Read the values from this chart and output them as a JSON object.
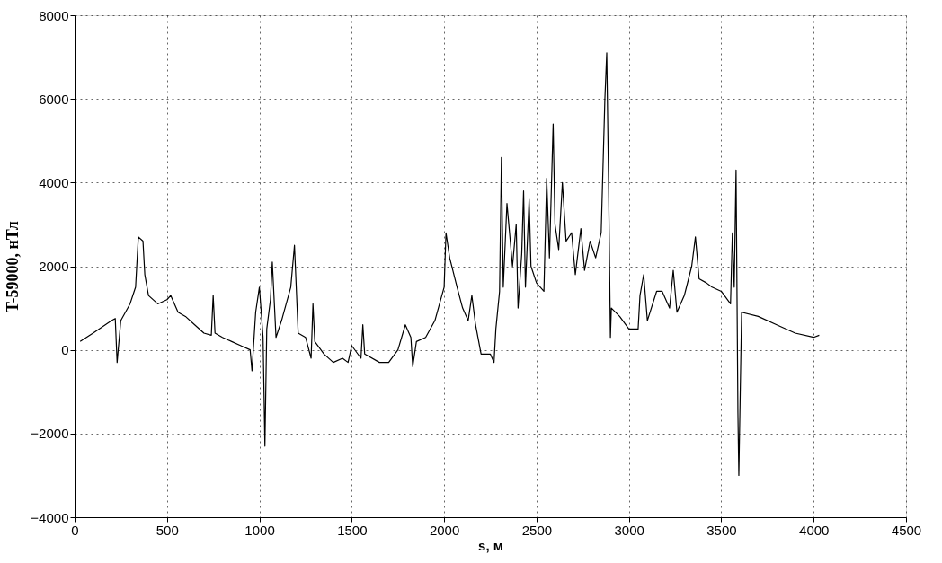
{
  "chart_data": {
    "type": "line",
    "xlabel": "s, м",
    "ylabel": "T-59000, нТл",
    "x": [
      30,
      100,
      200,
      220,
      230,
      250,
      300,
      330,
      345,
      370,
      380,
      400,
      450,
      500,
      520,
      560,
      600,
      650,
      700,
      740,
      750,
      760,
      800,
      850,
      900,
      950,
      960,
      980,
      1000,
      1020,
      1030,
      1040,
      1060,
      1070,
      1090,
      1120,
      1170,
      1190,
      1210,
      1250,
      1280,
      1290,
      1300,
      1350,
      1400,
      1450,
      1480,
      1500,
      1550,
      1560,
      1570,
      1650,
      1700,
      1750,
      1790,
      1820,
      1830,
      1850,
      1900,
      1950,
      2000,
      2010,
      2030,
      2070,
      2100,
      2130,
      2150,
      2170,
      2200,
      2250,
      2270,
      2280,
      2300,
      2310,
      2320,
      2340,
      2370,
      2390,
      2400,
      2420,
      2430,
      2440,
      2460,
      2470,
      2500,
      2540,
      2555,
      2570,
      2590,
      2600,
      2620,
      2640,
      2660,
      2690,
      2710,
      2740,
      2760,
      2790,
      2820,
      2850,
      2870,
      2880,
      2890,
      2900,
      2905,
      2950,
      3000,
      3050,
      3060,
      3080,
      3100,
      3150,
      3180,
      3220,
      3240,
      3260,
      3300,
      3340,
      3360,
      3380,
      3420,
      3450,
      3500,
      3550,
      3560,
      3570,
      3580,
      3590,
      3595,
      3610,
      3700,
      3800,
      3900,
      4000,
      4030
    ],
    "series": [
      {
        "color": "#000000",
        "values": [
          200,
          400,
          700,
          750,
          -300,
          700,
          1100,
          1500,
          2700,
          2600,
          1800,
          1300,
          1100,
          1200,
          1300,
          900,
          800,
          600,
          400,
          350,
          1300,
          400,
          300,
          200,
          100,
          0,
          -500,
          900,
          1500,
          300,
          -2300,
          500,
          1200,
          2100,
          300,
          700,
          1500,
          2500,
          400,
          300,
          -200,
          1100,
          200,
          -100,
          -300,
          -200,
          -300,
          100,
          -200,
          600,
          -100,
          -300,
          -300,
          0,
          600,
          300,
          -400,
          200,
          300,
          700,
          1500,
          2800,
          2200,
          1500,
          1000,
          700,
          1300,
          600,
          -100,
          -100,
          -300,
          500,
          1400,
          4600,
          1500,
          3500,
          2000,
          3000,
          1000,
          2300,
          3800,
          1500,
          3600,
          2000,
          1600,
          1400,
          4100,
          2200,
          5400,
          3000,
          2400,
          4000,
          2600,
          2800,
          1800,
          2900,
          1900,
          2600,
          2200,
          2800,
          6000,
          7100,
          4000,
          300,
          1000,
          800,
          500,
          500,
          1300,
          1800,
          700,
          1400,
          1400,
          1000,
          1900,
          900,
          1300,
          2000,
          2700,
          1700,
          1600,
          1500,
          1400,
          1100,
          2800,
          1500,
          4300,
          -1500,
          -3000,
          900,
          800,
          600,
          400,
          300,
          350
        ]
      }
    ],
    "xlim": [
      0,
      4500
    ],
    "xticks": [
      0,
      500,
      1000,
      1500,
      2000,
      2500,
      3000,
      3500,
      4000,
      4500
    ],
    "ylim": [
      -4000,
      8000
    ],
    "yticks": [
      -4000,
      -2000,
      0,
      2000,
      4000,
      6000,
      8000
    ],
    "grid": true,
    "marker": "none",
    "line_style": "solid"
  }
}
